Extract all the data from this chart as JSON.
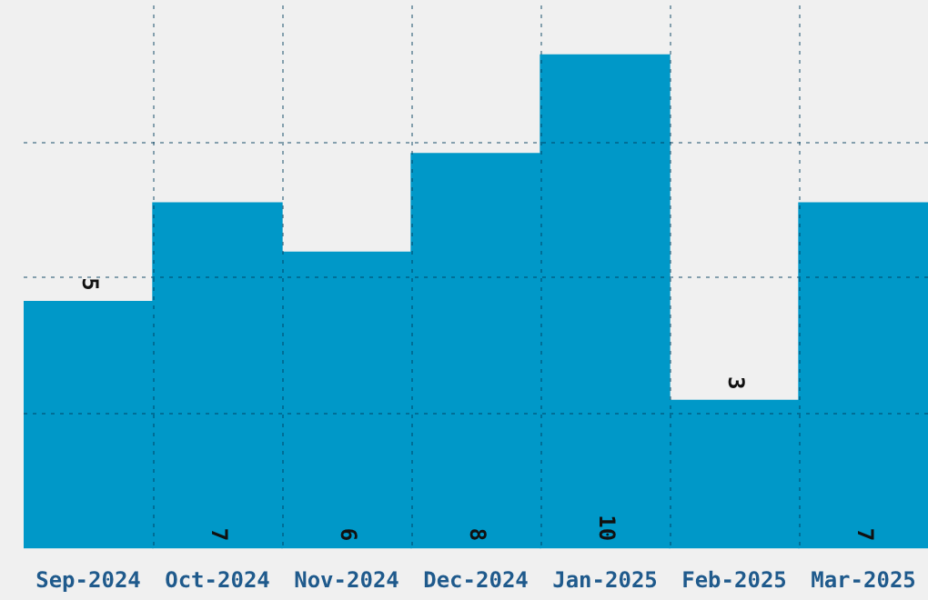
{
  "chart_data": {
    "type": "bar",
    "categories": [
      "Sep-2024",
      "Oct-2024",
      "Nov-2024",
      "Dec-2024",
      "Jan-2025",
      "Feb-2025",
      "Mar-2025"
    ],
    "values": [
      5,
      7,
      6,
      8,
      10,
      3,
      7
    ],
    "color": "#0098c8",
    "ylim": [
      0,
      11
    ],
    "tick_labels": "x",
    "grid": true,
    "legend": false,
    "data_labels": true
  }
}
